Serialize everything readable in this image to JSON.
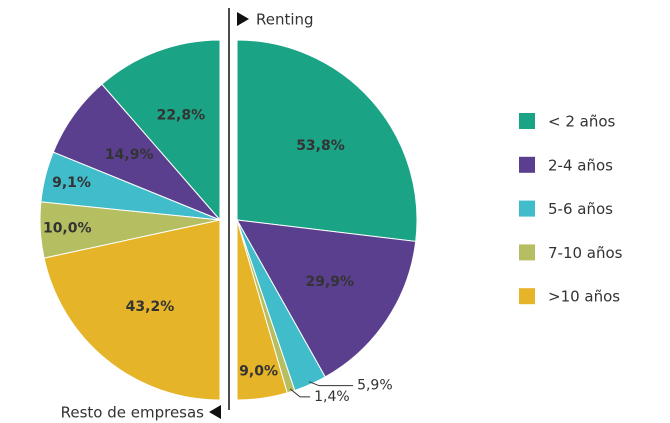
{
  "chart_data": [
    {
      "type": "pie",
      "title": "Renting",
      "direction": "clockwise",
      "categories": [
        "< 2 años",
        "2-4 años",
        "5-6 años",
        "7-10 años",
        ">10 años"
      ],
      "values": [
        53.8,
        29.9,
        5.9,
        1.4,
        9.0
      ],
      "value_labels": [
        "53,8%",
        "29,9%",
        "5,9%",
        "1,4%",
        "9,0%"
      ],
      "colors": [
        "#1aa385",
        "#5b3f8f",
        "#41bccb",
        "#b5bf62",
        "#e6b428"
      ],
      "label_colors": [
        "#ffffff",
        "#ffffff",
        "#333333",
        "#333333",
        "#333333"
      ]
    },
    {
      "type": "pie",
      "title": "Resto de empresas",
      "direction": "counterclockwise",
      "categories": [
        "< 2 años",
        "2-4 años",
        "5-6 años",
        "7-10 años",
        ">10 años"
      ],
      "values": [
        22.8,
        14.9,
        9.1,
        10.0,
        43.2
      ],
      "value_labels": [
        "22,8%",
        "14,9%",
        "9,1%",
        "10,0%",
        "43,2%"
      ],
      "colors": [
        "#1aa385",
        "#5b3f8f",
        "#41bccb",
        "#b5bf62",
        "#e6b428"
      ],
      "label_colors": [
        "#ffffff",
        "#ffffff",
        "#ffffff",
        "#ffffff",
        "#333333"
      ],
      "legend": "right"
    }
  ]
}
